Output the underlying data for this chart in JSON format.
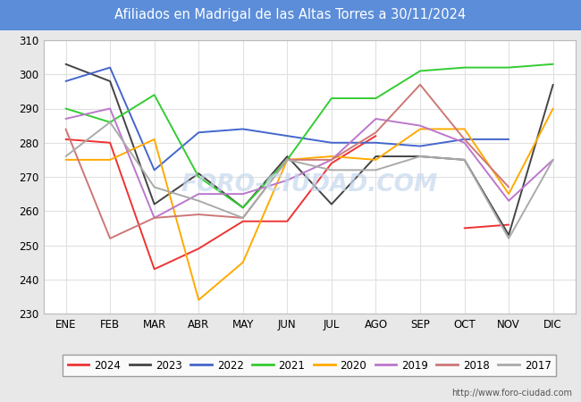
{
  "title": "Afiliados en Madrigal de las Altas Torres a 30/11/2024",
  "title_bg_color": "#5b8dd9",
  "title_text_color": "white",
  "ylim": [
    230,
    310
  ],
  "yticks": [
    230,
    240,
    250,
    260,
    270,
    280,
    290,
    300,
    310
  ],
  "months": [
    "ENE",
    "FEB",
    "MAR",
    "ABR",
    "MAY",
    "JUN",
    "JUL",
    "AGO",
    "SEP",
    "OCT",
    "NOV",
    "DIC"
  ],
  "watermark": "FORO-CIUDAD.COM",
  "url": "http://www.foro-ciudad.com",
  "series": {
    "2024": {
      "color": "#ee3333",
      "data": [
        281,
        280,
        243,
        249,
        257,
        257,
        274,
        282,
        null,
        255,
        256,
        null
      ]
    },
    "2023": {
      "color": "#444444",
      "data": [
        303,
        298,
        262,
        271,
        261,
        276,
        262,
        276,
        276,
        275,
        253,
        297
      ]
    },
    "2022": {
      "color": "#4466cc",
      "data": [
        298,
        302,
        272,
        283,
        284,
        282,
        280,
        280,
        279,
        281,
        281,
        null
      ]
    },
    "2021": {
      "color": "#33cc33",
      "data": [
        290,
        286,
        294,
        270,
        261,
        275,
        293,
        293,
        301,
        302,
        302,
        303
      ]
    },
    "2020": {
      "color": "#ffaa00",
      "data": [
        275,
        275,
        281,
        234,
        245,
        275,
        276,
        275,
        284,
        284,
        265,
        290
      ]
    },
    "2019": {
      "color": "#bb77cc",
      "data": [
        287,
        290,
        258,
        265,
        265,
        269,
        275,
        287,
        285,
        280,
        263,
        275
      ]
    },
    "2018": {
      "color": "#cc7777",
      "data": [
        284,
        252,
        258,
        259,
        258,
        275,
        275,
        283,
        297,
        281,
        267,
        null
      ]
    },
    "2017": {
      "color": "#aaaaaa",
      "data": [
        276,
        286,
        267,
        263,
        258,
        275,
        272,
        272,
        276,
        275,
        252,
        275
      ]
    }
  },
  "legend_order": [
    "2024",
    "2023",
    "2022",
    "2021",
    "2020",
    "2019",
    "2018",
    "2017"
  ],
  "outer_bg_color": "#e8e8e8",
  "plot_bg_color": "#ffffff",
  "grid_color": "#e0e0e0"
}
